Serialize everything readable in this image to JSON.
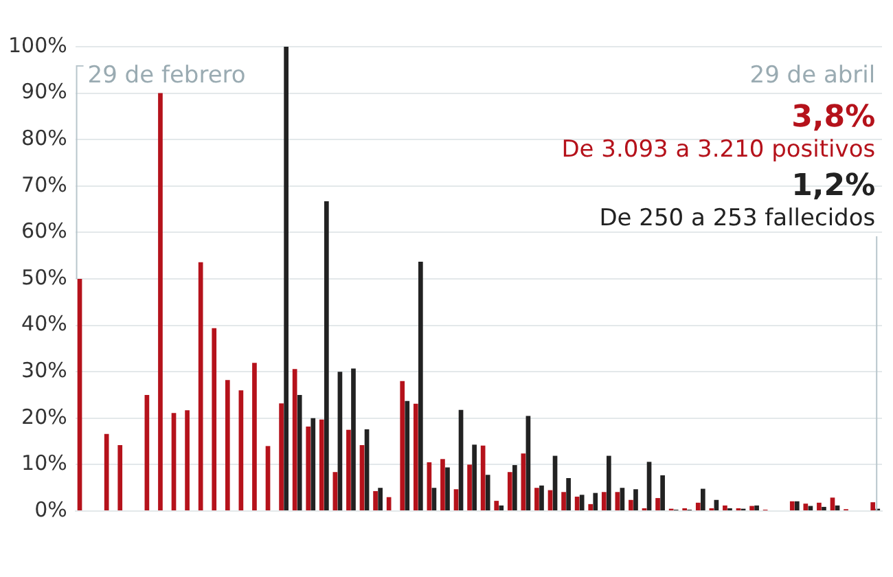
{
  "chart_data": {
    "type": "bar",
    "categories": [
      null,
      null,
      null,
      null,
      null,
      null,
      null,
      null,
      null,
      null,
      null,
      null,
      null,
      null,
      null,
      null,
      null,
      null,
      null,
      null,
      null,
      null,
      null,
      null,
      null,
      null,
      null,
      null,
      null,
      null,
      null,
      null,
      null,
      null,
      null,
      null,
      null,
      null,
      null,
      null,
      null,
      null,
      null,
      null,
      null,
      null,
      null,
      null,
      null,
      null,
      null,
      null,
      null,
      null,
      null,
      null,
      null,
      null,
      null,
      null
    ],
    "series": [
      {
        "color": "#b5121b",
        "values": [
          50,
          null,
          16.6,
          14.2,
          null,
          25,
          90,
          21.1,
          21.7,
          53.6,
          39.4,
          28.2,
          26,
          31.9,
          14,
          23.2,
          30.6,
          18.2,
          19.7,
          8.4,
          17.5,
          14.2,
          4.3,
          3,
          28,
          23.1,
          10.5,
          11.2,
          4.7,
          10,
          14.1,
          2.2,
          8.4,
          12.4,
          5,
          4.5,
          4.1,
          3.1,
          1.5,
          4.1,
          4.1,
          2.4,
          0.6,
          2.8,
          0.5,
          0.6,
          1.8,
          0.6,
          1.2,
          0.6,
          1.1,
          0.3,
          null,
          2.1,
          1.6,
          1.8,
          2.9,
          0.4,
          null,
          1.9
        ]
      },
      {
        "color": "#222222",
        "values": [
          null,
          null,
          null,
          null,
          null,
          null,
          null,
          null,
          null,
          null,
          null,
          null,
          null,
          null,
          null,
          100,
          25,
          20,
          66.7,
          30,
          30.7,
          17.6,
          5,
          null,
          23.7,
          53.7,
          5,
          9.4,
          21.8,
          14.3,
          7.8,
          1.2,
          9.9,
          20.5,
          5.5,
          11.9,
          7.1,
          3.5,
          3.9,
          11.9,
          5,
          4.7,
          10.6,
          7.7,
          0.3,
          0.3,
          4.8,
          2.4,
          0.6,
          0.5,
          1.2,
          null,
          null,
          2.1,
          1.1,
          0.9,
          1.2,
          null,
          null,
          0.5
        ]
      }
    ],
    "ylim": [
      0,
      100
    ],
    "yticks": [
      {
        "value": 0,
        "label": "0%"
      },
      {
        "value": 10,
        "label": "10%"
      },
      {
        "value": 20,
        "label": "20%"
      },
      {
        "value": 30,
        "label": "30%"
      },
      {
        "value": 40,
        "label": "40%"
      },
      {
        "value": 50,
        "label": "50%"
      },
      {
        "value": 60,
        "label": "60%"
      },
      {
        "value": 70,
        "label": "70%"
      },
      {
        "value": 80,
        "label": "80%"
      },
      {
        "value": 90,
        "label": "90%"
      },
      {
        "value": 100,
        "label": "100%"
      }
    ],
    "grid": "y",
    "tick_labels": "y",
    "legend": false,
    "annotations": [
      "29 de febrero",
      "29 de abril",
      "3,8%",
      "De 3.093 a 3.210 positivos",
      "1,2%",
      "De 250 a 253 fallecidos"
    ]
  }
}
